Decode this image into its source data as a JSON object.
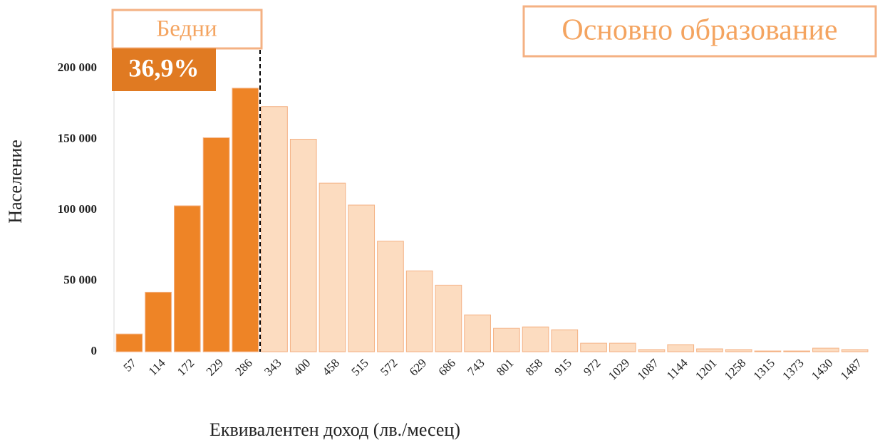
{
  "chart_data": {
    "type": "bar",
    "title": "Основно образование",
    "annotations": [
      "Бедни",
      "36,9%"
    ],
    "xlabel": "Еквивалентен доход (лв./месец)",
    "ylabel": "Население",
    "categories": [
      "57",
      "114",
      "172",
      "229",
      "286",
      "343",
      "400",
      "458",
      "515",
      "572",
      "629",
      "686",
      "743",
      "801",
      "858",
      "915",
      "972",
      "1029",
      "1087",
      "1144",
      "1201",
      "1258",
      "1315",
      "1373",
      "1430",
      "1487"
    ],
    "values": [
      12500,
      42000,
      103000,
      151000,
      186000,
      173000,
      150000,
      119000,
      103500,
      78000,
      57000,
      47000,
      26000,
      16500,
      17500,
      15500,
      6000,
      6000,
      1500,
      5000,
      2000,
      1500,
      500,
      500,
      2500,
      1500
    ],
    "colors": [
      "#ee8426",
      "#ee8426",
      "#ee8426",
      "#ee8426",
      "#ee8426",
      "#fcdcc0",
      "#fcdcc0",
      "#fcdcc0",
      "#fcdcc0",
      "#fcdcc0",
      "#fcdcc0",
      "#fcdcc0",
      "#fcdcc0",
      "#fcdcc0",
      "#fcdcc0",
      "#fcdcc0",
      "#fcdcc0",
      "#fcdcc0",
      "#fcdcc0",
      "#fcdcc0",
      "#fcdcc0",
      "#fcdcc0",
      "#fcdcc0",
      "#fcdcc0",
      "#fcdcc0",
      "#fcdcc0"
    ],
    "ylim": [
      0,
      200000
    ],
    "yticks": [
      0,
      {
        "value": 50000,
        "label": "50 000"
      },
      {
        "value": 100000,
        "label": "100 000"
      },
      {
        "value": 150000,
        "label": "150 000"
      },
      {
        "value": 200000,
        "label": "200 000"
      }
    ],
    "grid": false
  }
}
